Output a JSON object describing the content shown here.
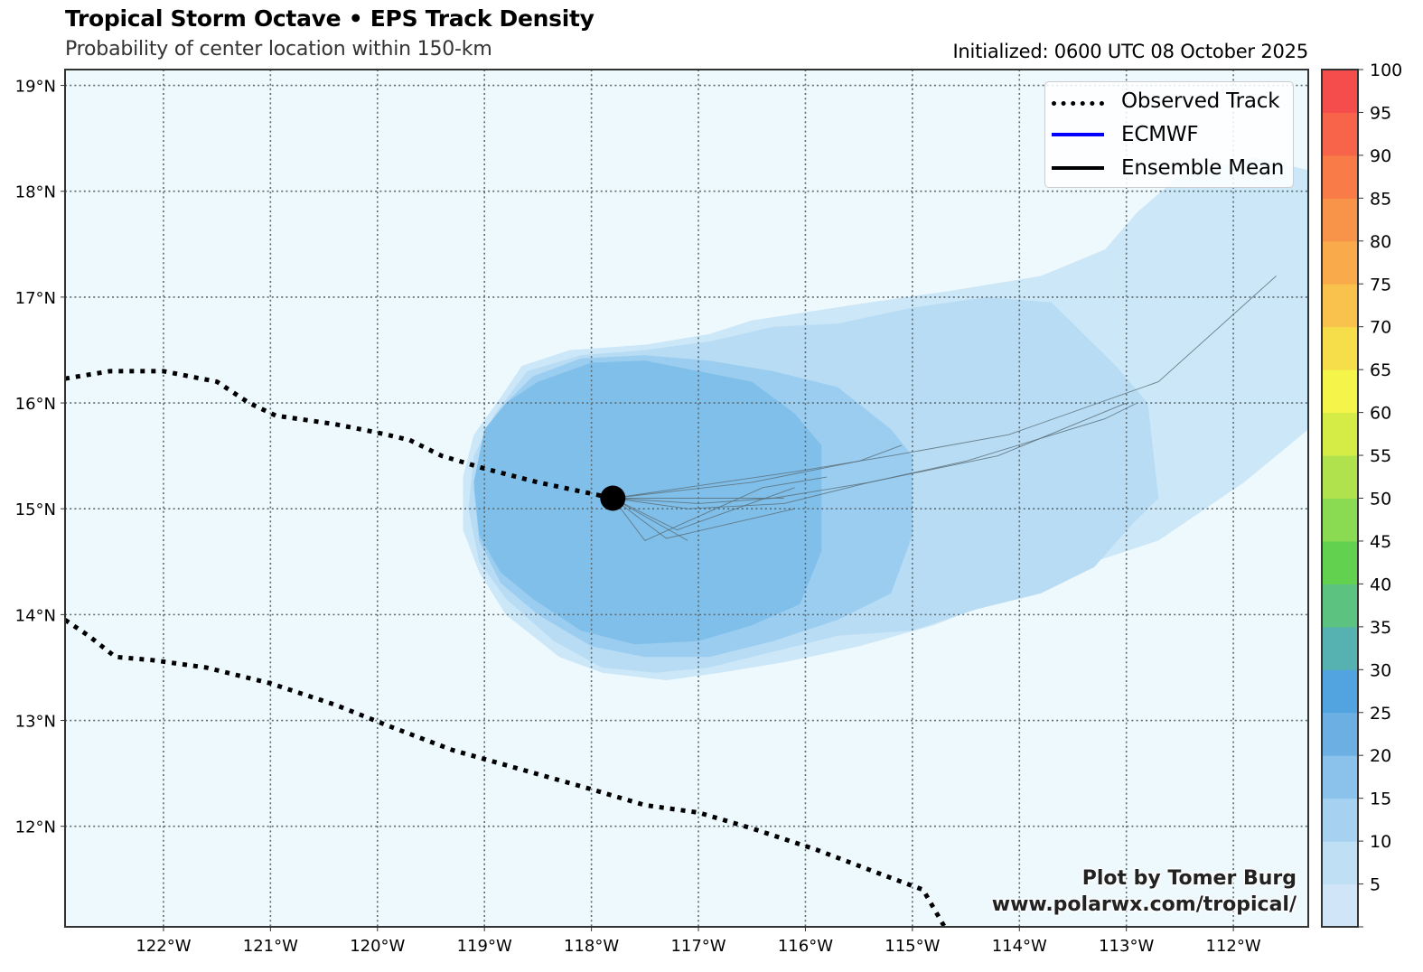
{
  "header": {
    "title": "Tropical Storm Octave • EPS Track Density",
    "subtitle": "Probability of center location within 150-km",
    "initialized": "Initialized: 0600 UTC 08 October 2025"
  },
  "credits": {
    "line1": "Plot by Tomer Burg",
    "line2": "www.polarwx.com/tropical/"
  },
  "legend": {
    "items": [
      {
        "label": "Observed Track",
        "style": "dotted",
        "color": "#000000"
      },
      {
        "label": "ECMWF",
        "style": "solid",
        "color": "#0000ff"
      },
      {
        "label": "Ensemble Mean",
        "style": "solid",
        "color": "#000000"
      }
    ]
  },
  "colors": {
    "ocean": "#eef9fd",
    "gridline": "#5a6a70",
    "frame": "#333333",
    "member_track": "#5a6e78",
    "storm_marker": "#000000"
  },
  "chart_data": {
    "type": "heatmap",
    "title": "Tropical Storm Octave • EPS Track Density",
    "subtitle": "Probability of center location within 150-km",
    "lon_range": [
      -122.92,
      -111.3
    ],
    "lat_range": [
      11.05,
      19.15
    ],
    "grid": true,
    "legend_position": "top-right",
    "x_ticks": [
      {
        "value": -122,
        "label": "122°W"
      },
      {
        "value": -121,
        "label": "121°W"
      },
      {
        "value": -120,
        "label": "120°W"
      },
      {
        "value": -119,
        "label": "119°W"
      },
      {
        "value": -118,
        "label": "118°W"
      },
      {
        "value": -117,
        "label": "117°W"
      },
      {
        "value": -116,
        "label": "116°W"
      },
      {
        "value": -115,
        "label": "115°W"
      },
      {
        "value": -114,
        "label": "114°W"
      },
      {
        "value": -113,
        "label": "113°W"
      },
      {
        "value": -112,
        "label": "112°W"
      }
    ],
    "y_ticks": [
      {
        "value": 19,
        "label": "19°N"
      },
      {
        "value": 18,
        "label": "18°N"
      },
      {
        "value": 17,
        "label": "17°N"
      },
      {
        "value": 16,
        "label": "16°N"
      },
      {
        "value": 15,
        "label": "15°N"
      },
      {
        "value": 14,
        "label": "14°N"
      },
      {
        "value": 13,
        "label": "13°N"
      },
      {
        "value": 12,
        "label": "12°N"
      }
    ],
    "colorbar": {
      "min": 0,
      "max": 100,
      "step": 5,
      "tick_labels": [
        "5",
        "10",
        "15",
        "20",
        "25",
        "30",
        "35",
        "40",
        "45",
        "50",
        "55",
        "60",
        "65",
        "70",
        "75",
        "80",
        "85",
        "90",
        "95",
        "100"
      ],
      "bin_colors": [
        "#d0e6f8",
        "#bedff4",
        "#a6d1f0",
        "#8ac2ec",
        "#6cb0e3",
        "#52a4e1",
        "#55b2b0",
        "#5cc27f",
        "#62d150",
        "#8adb52",
        "#b0e24e",
        "#d5ec46",
        "#f4f44a",
        "#f6de4b",
        "#f8c24c",
        "#f9aa4a",
        "#f8944a",
        "#f87b48",
        "#f7644a",
        "#f54d4c"
      ]
    },
    "density_contours": [
      {
        "level": 5,
        "color": "#cbe7f8",
        "polygon": [
          [
            -122.92,
            11.05
          ],
          [
            -122.92,
            11.05
          ]
        ],
        "outline": [
          [
            -118.65,
            16.35
          ],
          [
            -118.2,
            16.5
          ],
          [
            -117.5,
            16.55
          ],
          [
            -116.9,
            16.65
          ],
          [
            -116.5,
            16.78
          ],
          [
            -115.4,
            16.95
          ],
          [
            -114.7,
            17.05
          ],
          [
            -113.8,
            17.2
          ],
          [
            -113.2,
            17.45
          ],
          [
            -112.9,
            17.8
          ],
          [
            -112.5,
            18.15
          ],
          [
            -111.8,
            18.32
          ],
          [
            -111.3,
            18.2
          ],
          [
            -111.3,
            15.75
          ],
          [
            -111.9,
            15.25
          ],
          [
            -112.7,
            14.7
          ],
          [
            -113.3,
            14.5
          ],
          [
            -113.7,
            14.3
          ],
          [
            -114.3,
            14.1
          ],
          [
            -114.8,
            13.9
          ],
          [
            -115.5,
            13.7
          ],
          [
            -116.2,
            13.55
          ],
          [
            -116.8,
            13.45
          ],
          [
            -117.3,
            13.38
          ],
          [
            -117.9,
            13.45
          ],
          [
            -118.3,
            13.6
          ],
          [
            -118.8,
            14.0
          ],
          [
            -119.05,
            14.4
          ],
          [
            -119.2,
            14.8
          ],
          [
            -119.2,
            15.3
          ],
          [
            -119.1,
            15.7
          ],
          [
            -118.85,
            16.05
          ]
        ]
      },
      {
        "level": 10,
        "color": "#b8dcf4",
        "outline": [
          [
            -118.6,
            16.3
          ],
          [
            -118.1,
            16.45
          ],
          [
            -117.5,
            16.5
          ],
          [
            -116.9,
            16.58
          ],
          [
            -116.3,
            16.72
          ],
          [
            -115.7,
            16.75
          ],
          [
            -115.0,
            16.9
          ],
          [
            -114.3,
            17.0
          ],
          [
            -113.7,
            16.95
          ],
          [
            -113.1,
            16.35
          ],
          [
            -112.8,
            16.0
          ],
          [
            -112.7,
            15.1
          ],
          [
            -112.95,
            14.85
          ],
          [
            -113.3,
            14.45
          ],
          [
            -113.8,
            14.2
          ],
          [
            -114.4,
            14.05
          ],
          [
            -115.0,
            13.85
          ],
          [
            -115.7,
            13.8
          ],
          [
            -116.3,
            13.65
          ],
          [
            -116.9,
            13.5
          ],
          [
            -117.4,
            13.45
          ],
          [
            -117.9,
            13.5
          ],
          [
            -118.35,
            13.75
          ],
          [
            -118.8,
            14.15
          ],
          [
            -119.05,
            14.5
          ],
          [
            -119.15,
            15.0
          ],
          [
            -119.1,
            15.5
          ],
          [
            -118.9,
            15.9
          ]
        ]
      },
      {
        "level": 15,
        "color": "#9acdf0",
        "outline": [
          [
            -118.55,
            16.25
          ],
          [
            -118.1,
            16.42
          ],
          [
            -117.5,
            16.45
          ],
          [
            -116.9,
            16.4
          ],
          [
            -116.3,
            16.3
          ],
          [
            -115.7,
            16.15
          ],
          [
            -115.2,
            15.75
          ],
          [
            -115.0,
            15.5
          ],
          [
            -115.0,
            14.75
          ],
          [
            -115.2,
            14.2
          ],
          [
            -115.7,
            13.95
          ],
          [
            -116.3,
            13.75
          ],
          [
            -116.9,
            13.6
          ],
          [
            -117.5,
            13.6
          ],
          [
            -118.0,
            13.7
          ],
          [
            -118.5,
            14.0
          ],
          [
            -118.85,
            14.3
          ],
          [
            -119.05,
            14.7
          ],
          [
            -119.1,
            15.2
          ],
          [
            -119.0,
            15.7
          ],
          [
            -118.8,
            16.0
          ]
        ]
      },
      {
        "level": 20,
        "color": "#80bfea",
        "outline": [
          [
            -118.5,
            16.2
          ],
          [
            -118.0,
            16.38
          ],
          [
            -117.5,
            16.4
          ],
          [
            -117.0,
            16.3
          ],
          [
            -116.5,
            16.2
          ],
          [
            -116.1,
            15.9
          ],
          [
            -115.85,
            15.6
          ],
          [
            -115.85,
            14.6
          ],
          [
            -116.05,
            14.1
          ],
          [
            -116.5,
            13.9
          ],
          [
            -117.0,
            13.75
          ],
          [
            -117.6,
            13.72
          ],
          [
            -118.1,
            13.85
          ],
          [
            -118.55,
            14.15
          ],
          [
            -118.85,
            14.4
          ],
          [
            -119.05,
            14.75
          ],
          [
            -119.1,
            15.25
          ],
          [
            -119.0,
            15.75
          ],
          [
            -118.8,
            16.0
          ]
        ]
      }
    ],
    "observed_track": [
      {
        "name": "northern-track",
        "points": [
          [
            -122.92,
            16.23
          ],
          [
            -122.5,
            16.3
          ],
          [
            -122.0,
            16.3
          ],
          [
            -121.5,
            16.2
          ],
          [
            -121.2,
            16.0
          ],
          [
            -120.95,
            15.88
          ],
          [
            -120.4,
            15.8
          ],
          [
            -120.0,
            15.72
          ],
          [
            -119.7,
            15.65
          ],
          [
            -119.4,
            15.5
          ],
          [
            -119.0,
            15.38
          ],
          [
            -118.5,
            15.25
          ],
          [
            -117.8,
            15.1
          ]
        ]
      },
      {
        "name": "southern-track",
        "points": [
          [
            -122.92,
            13.95
          ],
          [
            -122.7,
            13.8
          ],
          [
            -122.45,
            13.6
          ],
          [
            -122.1,
            13.57
          ],
          [
            -121.6,
            13.5
          ],
          [
            -121.0,
            13.35
          ],
          [
            -120.4,
            13.15
          ],
          [
            -119.9,
            12.95
          ],
          [
            -119.3,
            12.72
          ],
          [
            -118.7,
            12.55
          ],
          [
            -118.0,
            12.35
          ],
          [
            -117.5,
            12.2
          ],
          [
            -117.0,
            12.13
          ],
          [
            -116.5,
            11.98
          ],
          [
            -115.9,
            11.78
          ],
          [
            -115.3,
            11.55
          ],
          [
            -114.9,
            11.4
          ],
          [
            -114.7,
            11.05
          ]
        ]
      }
    ],
    "storm_center": {
      "lon": -117.8,
      "lat": 15.1
    },
    "ensemble_members": [
      [
        [
          -117.8,
          15.1
        ],
        [
          -116.1,
          15.35
        ],
        [
          -115.2,
          15.5
        ],
        [
          -114.1,
          15.7
        ],
        [
          -112.7,
          16.2
        ],
        [
          -111.6,
          17.2
        ]
      ],
      [
        [
          -117.8,
          15.1
        ],
        [
          -116.5,
          15.25
        ],
        [
          -115.5,
          15.45
        ],
        [
          -115.1,
          15.6
        ]
      ],
      [
        [
          -117.8,
          15.1
        ],
        [
          -117.0,
          15.05
        ],
        [
          -116.3,
          15.1
        ],
        [
          -115.4,
          15.25
        ],
        [
          -114.5,
          15.45
        ],
        [
          -113.2,
          15.85
        ],
        [
          -112.9,
          16.0
        ]
      ],
      [
        [
          -117.8,
          15.1
        ],
        [
          -117.1,
          15.0
        ],
        [
          -116.2,
          15.05
        ],
        [
          -115.4,
          15.25
        ],
        [
          -114.2,
          15.5
        ],
        [
          -113.0,
          16.0
        ]
      ],
      [
        [
          -117.8,
          15.1
        ],
        [
          -117.5,
          14.7
        ],
        [
          -116.4,
          15.2
        ],
        [
          -115.8,
          15.3
        ]
      ],
      [
        [
          -117.8,
          15.1
        ],
        [
          -117.3,
          14.72
        ],
        [
          -116.1,
          15.0
        ]
      ],
      [
        [
          -117.8,
          15.1
        ],
        [
          -117.2,
          14.8
        ],
        [
          -116.1,
          15.2
        ]
      ],
      [
        [
          -117.8,
          15.1
        ],
        [
          -117.1,
          14.7
        ]
      ],
      [
        [
          -117.8,
          15.1
        ],
        [
          -116.2,
          15.1
        ]
      ]
    ]
  }
}
